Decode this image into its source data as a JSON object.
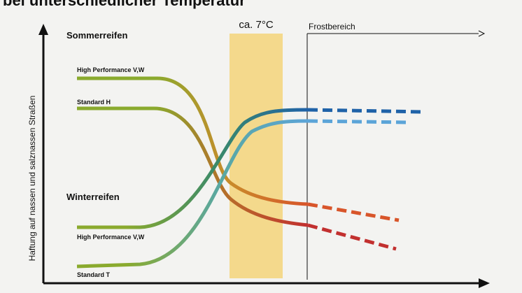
{
  "header": {
    "title": "bei unterschiedlicher Temperatur"
  },
  "axes": {
    "y_label": "Haftung auf nassen und salznassen Straßen"
  },
  "zones": {
    "band_label": "ca. 7°C",
    "frost_label": "Frostbereich"
  },
  "groups": [
    {
      "label": "Sommerreifen",
      "curves": [
        {
          "label": "High Performance V,W"
        },
        {
          "label": "Standard H"
        }
      ]
    },
    {
      "label": "Winterreifen",
      "curves": [
        {
          "label": "High Performance V,W"
        },
        {
          "label": "Standard T"
        }
      ]
    }
  ]
}
